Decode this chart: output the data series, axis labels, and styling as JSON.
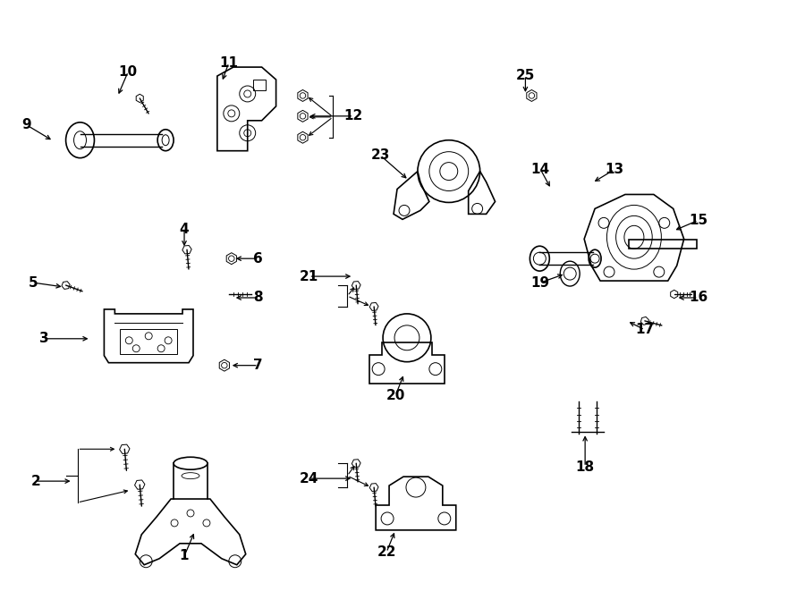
{
  "bg_color": "#ffffff",
  "line_color": "#000000",
  "fig_width": 9.0,
  "fig_height": 6.61,
  "dpi": 100,
  "label_data": [
    [
      1,
      2.05,
      0.38,
      0.12,
      0.28
    ],
    [
      2,
      0.38,
      1.22,
      0.42,
      0.0
    ],
    [
      3,
      0.48,
      2.82,
      0.52,
      0.0
    ],
    [
      4,
      2.05,
      4.05,
      0.0,
      -0.22
    ],
    [
      5,
      0.35,
      3.45,
      0.35,
      -0.05
    ],
    [
      6,
      2.88,
      3.72,
      -0.28,
      0.0
    ],
    [
      7,
      2.88,
      2.52,
      -0.32,
      0.0
    ],
    [
      8,
      2.88,
      3.28,
      -0.28,
      0.0
    ],
    [
      9,
      0.28,
      5.22,
      0.3,
      -0.18
    ],
    [
      10,
      1.42,
      5.82,
      -0.12,
      -0.28
    ],
    [
      11,
      2.55,
      5.92,
      -0.08,
      -0.22
    ],
    [
      12,
      3.95,
      5.32,
      -0.52,
      0.0
    ],
    [
      13,
      6.88,
      4.72,
      -0.25,
      -0.15
    ],
    [
      14,
      6.05,
      4.72,
      0.12,
      -0.22
    ],
    [
      15,
      7.82,
      4.15,
      -0.28,
      -0.12
    ],
    [
      16,
      7.82,
      3.28,
      -0.25,
      0.0
    ],
    [
      17,
      7.22,
      2.92,
      -0.2,
      0.1
    ],
    [
      18,
      6.55,
      1.38,
      0.0,
      0.38
    ],
    [
      19,
      6.05,
      3.45,
      0.28,
      0.1
    ],
    [
      20,
      4.42,
      2.18,
      0.1,
      0.25
    ],
    [
      21,
      3.45,
      3.52,
      0.5,
      0.0
    ],
    [
      22,
      4.32,
      0.42,
      0.1,
      0.25
    ],
    [
      23,
      4.25,
      4.88,
      0.32,
      -0.28
    ],
    [
      24,
      3.45,
      1.25,
      0.5,
      0.0
    ],
    [
      25,
      5.88,
      5.78,
      -0.0,
      -0.22
    ]
  ]
}
